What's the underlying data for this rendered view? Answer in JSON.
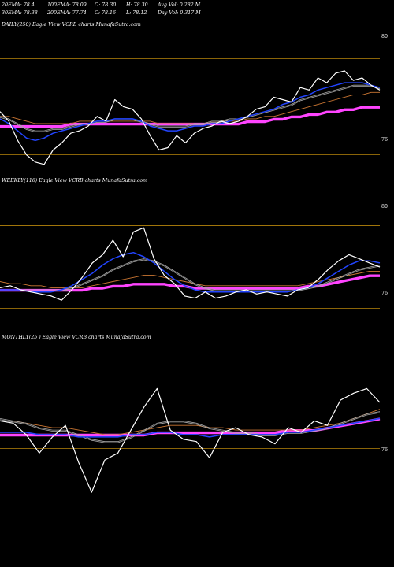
{
  "header": {
    "row1": [
      {
        "key": "ema20",
        "text": "20EMA: 78.4"
      },
      {
        "key": "ema100",
        "text": "100EMA: 78.09"
      },
      {
        "key": "open",
        "text": "O: 78.30"
      },
      {
        "key": "high",
        "text": "H: 78.30"
      },
      {
        "key": "avgvol",
        "text": "Avg Vol: 0.282  M"
      }
    ],
    "row2": [
      {
        "key": "ema30",
        "text": "30EMA: 78.38"
      },
      {
        "key": "ema200",
        "text": "200EMA: 77.74"
      },
      {
        "key": "close",
        "text": "C: 78.16"
      },
      {
        "key": "low",
        "text": "L: 78.12"
      },
      {
        "key": "dayvol",
        "text": "Day Vol: 0.317  M"
      }
    ]
  },
  "panels": [
    {
      "id": "daily",
      "label": "DAILY(250) Eagle   View  VCRB charts MunafaSutra.com",
      "ticks": [
        "80",
        "76"
      ]
    },
    {
      "id": "weekly",
      "label": "WEEKLY(116) Eagle   View  VCRB charts MunafaSutra.com",
      "ticks": [
        "80",
        "76"
      ]
    },
    {
      "id": "monthly",
      "label": "MONTHLY(25                   ) Eagle   View  VCRB charts MunafaSutra.com",
      "ticks": [
        "76"
      ]
    }
  ],
  "colors": {
    "background": "#000000",
    "price": "#ffffff",
    "ema_fast": "#2244ff",
    "ema_slow": "#ff44ff",
    "ema_mid": "#aaaaaa",
    "ema_orange": "#cc7733",
    "level_line": "#b8860b"
  },
  "chart_data": [
    {
      "type": "line",
      "panel": "daily",
      "ylim": [
        75.3,
        81.2
      ],
      "levels": [
        80,
        76
      ],
      "series": [
        {
          "role": "price",
          "values": [
            77.8,
            77.4,
            76.6,
            76.0,
            75.7,
            75.6,
            76.2,
            76.5,
            76.9,
            77.0,
            77.2,
            77.6,
            77.4,
            78.3,
            78.0,
            77.9,
            77.5,
            76.8,
            76.2,
            76.3,
            76.8,
            76.5,
            76.9,
            77.1,
            77.2,
            77.4,
            77.3,
            77.4,
            77.6,
            77.9,
            78.0,
            78.4,
            78.3,
            78.2,
            78.8,
            78.7,
            79.2,
            79.0,
            79.4,
            79.5,
            79.1,
            79.2,
            78.9,
            78.7
          ]
        },
        {
          "role": "ema_fast",
          "values": [
            77.5,
            77.3,
            77.0,
            76.7,
            76.6,
            76.7,
            76.9,
            77.0,
            77.1,
            77.2,
            77.3,
            77.4,
            77.4,
            77.5,
            77.5,
            77.5,
            77.4,
            77.2,
            77.1,
            77.0,
            77.0,
            77.1,
            77.2,
            77.2,
            77.3,
            77.3,
            77.4,
            77.5,
            77.6,
            77.7,
            77.8,
            77.9,
            78.1,
            78.2,
            78.4,
            78.5,
            78.7,
            78.8,
            78.9,
            79.0,
            79.0,
            79.0,
            78.9,
            78.8
          ]
        },
        {
          "role": "ema_mid",
          "values": [
            77.6,
            77.5,
            77.3,
            77.1,
            77.0,
            77.0,
            77.1,
            77.1,
            77.2,
            77.3,
            77.3,
            77.4,
            77.4,
            77.5,
            77.5,
            77.5,
            77.4,
            77.3,
            77.2,
            77.2,
            77.2,
            77.2,
            77.3,
            77.3,
            77.4,
            77.4,
            77.5,
            77.5,
            77.6,
            77.7,
            77.8,
            77.9,
            78.0,
            78.1,
            78.3,
            78.4,
            78.5,
            78.6,
            78.7,
            78.8,
            78.9,
            78.9,
            78.9,
            78.8
          ]
        },
        {
          "role": "ema_orange",
          "values": [
            77.6,
            77.6,
            77.5,
            77.4,
            77.3,
            77.3,
            77.3,
            77.3,
            77.3,
            77.4,
            77.4,
            77.4,
            77.4,
            77.4,
            77.4,
            77.4,
            77.4,
            77.4,
            77.3,
            77.3,
            77.3,
            77.3,
            77.3,
            77.3,
            77.4,
            77.4,
            77.4,
            77.4,
            77.5,
            77.5,
            77.6,
            77.6,
            77.7,
            77.8,
            77.9,
            78.0,
            78.1,
            78.2,
            78.3,
            78.4,
            78.5,
            78.5,
            78.6,
            78.6
          ]
        },
        {
          "role": "ema_slow",
          "values": [
            77.2,
            77.2,
            77.2,
            77.2,
            77.2,
            77.2,
            77.2,
            77.2,
            77.3,
            77.3,
            77.3,
            77.3,
            77.3,
            77.3,
            77.3,
            77.3,
            77.3,
            77.3,
            77.3,
            77.3,
            77.3,
            77.3,
            77.3,
            77.3,
            77.3,
            77.3,
            77.3,
            77.3,
            77.4,
            77.4,
            77.4,
            77.5,
            77.5,
            77.6,
            77.6,
            77.7,
            77.7,
            77.8,
            77.8,
            77.9,
            77.9,
            78.0,
            78.0,
            78.0
          ]
        }
      ]
    },
    {
      "type": "line",
      "panel": "weekly",
      "ylim": [
        75.0,
        81.2
      ],
      "levels": [
        80,
        76
      ],
      "series": [
        {
          "role": "price",
          "values": [
            77.0,
            77.1,
            76.9,
            76.8,
            76.7,
            76.6,
            76.4,
            76.9,
            77.5,
            78.2,
            78.6,
            79.3,
            78.5,
            79.7,
            79.9,
            78.4,
            77.6,
            77.2,
            76.6,
            76.5,
            76.8,
            76.5,
            76.6,
            76.8,
            76.9,
            76.7,
            76.8,
            76.7,
            76.6,
            76.9,
            77.0,
            77.4,
            77.9,
            78.3,
            78.6,
            78.4,
            78.2,
            78.0
          ]
        },
        {
          "role": "ema_fast",
          "values": [
            76.9,
            76.9,
            76.9,
            76.8,
            76.8,
            76.8,
            76.9,
            77.1,
            77.4,
            77.7,
            78.1,
            78.4,
            78.6,
            78.7,
            78.5,
            78.2,
            77.8,
            77.4,
            77.1,
            76.9,
            76.8,
            76.8,
            76.8,
            76.8,
            76.8,
            76.8,
            76.8,
            76.8,
            76.8,
            76.9,
            77.0,
            77.2,
            77.5,
            77.8,
            78.1,
            78.3,
            78.3,
            78.2
          ]
        },
        {
          "role": "ema_mid",
          "values": [
            76.9,
            76.9,
            76.9,
            76.9,
            76.9,
            76.9,
            76.9,
            77.0,
            77.2,
            77.4,
            77.6,
            77.9,
            78.1,
            78.3,
            78.4,
            78.3,
            78.1,
            77.8,
            77.5,
            77.2,
            77.0,
            76.9,
            76.9,
            76.9,
            76.9,
            76.9,
            76.9,
            76.9,
            76.9,
            76.9,
            77.0,
            77.1,
            77.3,
            77.5,
            77.7,
            77.9,
            78.0,
            78.1
          ]
        },
        {
          "role": "ema_orange",
          "values": [
            77.3,
            77.2,
            77.2,
            77.1,
            77.1,
            77.0,
            77.0,
            77.0,
            77.0,
            77.1,
            77.2,
            77.3,
            77.4,
            77.5,
            77.6,
            77.6,
            77.5,
            77.4,
            77.3,
            77.2,
            77.1,
            77.1,
            77.1,
            77.1,
            77.1,
            77.1,
            77.1,
            77.1,
            77.1,
            77.1,
            77.2,
            77.3,
            77.4,
            77.5,
            77.6,
            77.7,
            77.8,
            77.8
          ]
        },
        {
          "role": "ema_slow",
          "values": [
            76.9,
            76.9,
            76.9,
            76.9,
            76.9,
            76.9,
            76.9,
            76.9,
            76.9,
            77.0,
            77.0,
            77.1,
            77.1,
            77.2,
            77.2,
            77.2,
            77.2,
            77.1,
            77.1,
            77.0,
            77.0,
            77.0,
            77.0,
            77.0,
            77.0,
            77.0,
            77.0,
            77.0,
            77.0,
            77.0,
            77.1,
            77.1,
            77.2,
            77.3,
            77.4,
            77.5,
            77.6,
            77.6
          ]
        }
      ]
    },
    {
      "type": "line",
      "panel": "monthly",
      "ylim": [
        73.8,
        79.2
      ],
      "levels": [
        75.8
      ],
      "series": [
        {
          "role": "price",
          "values": [
            77.0,
            76.9,
            76.4,
            75.6,
            76.3,
            76.8,
            75.2,
            73.9,
            75.3,
            75.6,
            76.6,
            77.6,
            78.4,
            76.6,
            76.2,
            76.1,
            75.4,
            76.5,
            76.7,
            76.4,
            76.3,
            76.0,
            76.7,
            76.5,
            77.0,
            76.8,
            77.9,
            78.2,
            78.4,
            77.8
          ]
        },
        {
          "role": "ema_fast",
          "values": [
            76.5,
            76.5,
            76.5,
            76.4,
            76.4,
            76.4,
            76.3,
            76.3,
            76.3,
            76.3,
            76.4,
            76.4,
            76.5,
            76.5,
            76.4,
            76.4,
            76.3,
            76.4,
            76.4,
            76.4,
            76.4,
            76.4,
            76.5,
            76.5,
            76.6,
            76.7,
            76.8,
            76.9,
            77.0,
            77.1
          ]
        },
        {
          "role": "ema_mid",
          "values": [
            77.1,
            77.0,
            76.9,
            76.7,
            76.6,
            76.6,
            76.4,
            76.2,
            76.1,
            76.1,
            76.3,
            76.6,
            76.9,
            77.0,
            77.0,
            76.9,
            76.7,
            76.6,
            76.5,
            76.5,
            76.4,
            76.4,
            76.5,
            76.5,
            76.6,
            76.7,
            76.9,
            77.1,
            77.3,
            77.4
          ]
        },
        {
          "role": "ema_orange",
          "values": [
            77.0,
            77.0,
            76.9,
            76.8,
            76.7,
            76.7,
            76.6,
            76.5,
            76.4,
            76.4,
            76.5,
            76.6,
            76.7,
            76.8,
            76.8,
            76.8,
            76.7,
            76.7,
            76.6,
            76.6,
            76.6,
            76.6,
            76.6,
            76.6,
            76.7,
            76.8,
            76.9,
            77.1,
            77.3,
            77.5
          ]
        },
        {
          "role": "ema_slow",
          "values": [
            76.4,
            76.4,
            76.4,
            76.4,
            76.4,
            76.4,
            76.4,
            76.4,
            76.4,
            76.4,
            76.4,
            76.4,
            76.5,
            76.5,
            76.5,
            76.5,
            76.5,
            76.5,
            76.5,
            76.5,
            76.5,
            76.5,
            76.6,
            76.6,
            76.6,
            76.7,
            76.8,
            76.9,
            77.0,
            77.1
          ]
        }
      ]
    }
  ]
}
